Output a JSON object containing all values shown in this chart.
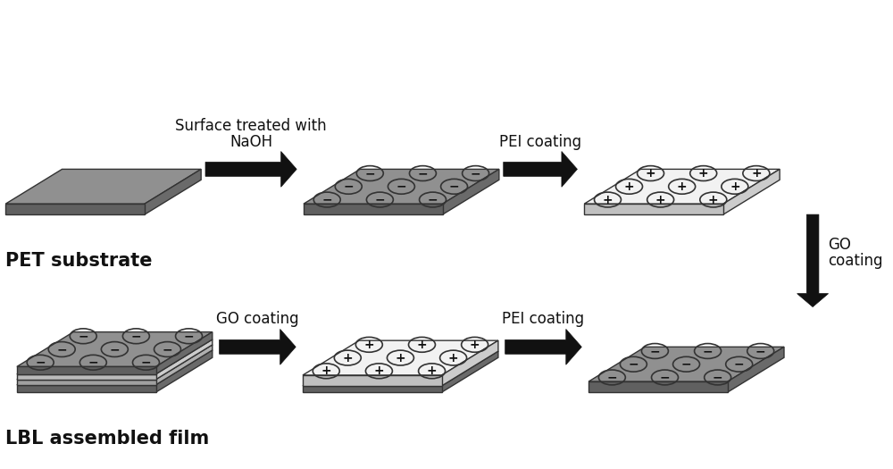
{
  "background_color": "#ffffff",
  "arrow_color": "#111111",
  "gray_top": "#909090",
  "gray_side_r": "#6a6a6a",
  "gray_side_b": "#606060",
  "white_top": "#f2f2f2",
  "white_side_r": "#cccccc",
  "white_side_b": "#c0c0c0",
  "lbl_layers": [
    "#909090",
    "#e8e8e8",
    "#f8f8f8",
    "#909090"
  ],
  "lbl_side_r": "#6a6a6a",
  "lbl_side_b": "#606060",
  "circle_edge": "#333333",
  "circle_face_neg": "none",
  "circle_face_pos": "none",
  "text_labels": {
    "pet": "PET substrate",
    "lbl": "LBL assembled film",
    "step1_line1": "Surface treated with",
    "step1_line2": "NaOH",
    "step2": "PEI coating",
    "step3_line1": "GO",
    "step3_line2": "coating",
    "step4": "PEI coating",
    "step5": "GO coating"
  },
  "label_fontsize": 15,
  "step_fontsize": 12,
  "fig_w": 10.0,
  "fig_h": 5.25,
  "dpi": 100
}
